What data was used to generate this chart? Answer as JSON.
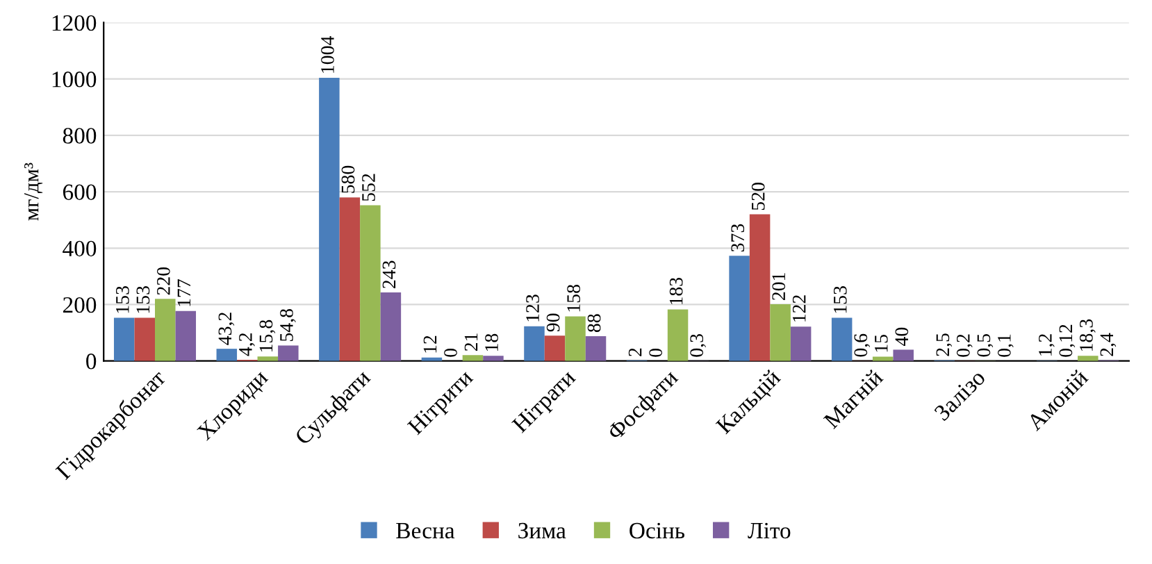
{
  "chart_data": {
    "type": "bar",
    "ylabel": "мг/дм³",
    "categories": [
      "Гідрокарбонат",
      "Хлориди",
      "Сульфати",
      "Нітрити",
      "Нітрати",
      "Фосфати",
      "Кальцій",
      "Магній",
      "Залізо",
      "Амоній"
    ],
    "series": [
      {
        "name": "Весна",
        "color": "#4a7ebb",
        "values": [
          153,
          43.2,
          1004,
          12,
          123,
          2,
          373,
          153,
          2.5,
          1.2
        ],
        "value_labels": [
          "153",
          "43,2",
          "1004",
          "12",
          "123",
          "2",
          "373",
          "153",
          "2,5",
          "1,2"
        ]
      },
      {
        "name": "Зима",
        "color": "#be4b48",
        "values": [
          153,
          4.2,
          580,
          0,
          90,
          0,
          520,
          0.6,
          0.2,
          0.12
        ],
        "value_labels": [
          "153",
          "4,2",
          "580",
          "0",
          "90",
          "0",
          "520",
          "0,6",
          "0,2",
          "0,12"
        ]
      },
      {
        "name": "Осінь",
        "color": "#98b954",
        "values": [
          220,
          15.8,
          552,
          21,
          158,
          183,
          201,
          15,
          0.5,
          18.3
        ],
        "value_labels": [
          "220",
          "15,8",
          "552",
          "21",
          "158",
          "183",
          "201",
          "15",
          "0,5",
          "18,3"
        ]
      },
      {
        "name": "Літо",
        "color": "#7d60a0",
        "values": [
          177,
          54.8,
          243,
          18,
          88,
          0.3,
          122,
          40,
          0.1,
          2.4
        ],
        "value_labels": [
          "177",
          "54,8",
          "243",
          "18",
          "88",
          "0,3",
          "122",
          "40",
          "0,1",
          "2,4"
        ]
      }
    ],
    "ylim": [
      0,
      1200
    ],
    "yticks": [
      0,
      200,
      400,
      600,
      800,
      1000,
      1200
    ],
    "grid": "y",
    "legend": "bottom"
  }
}
